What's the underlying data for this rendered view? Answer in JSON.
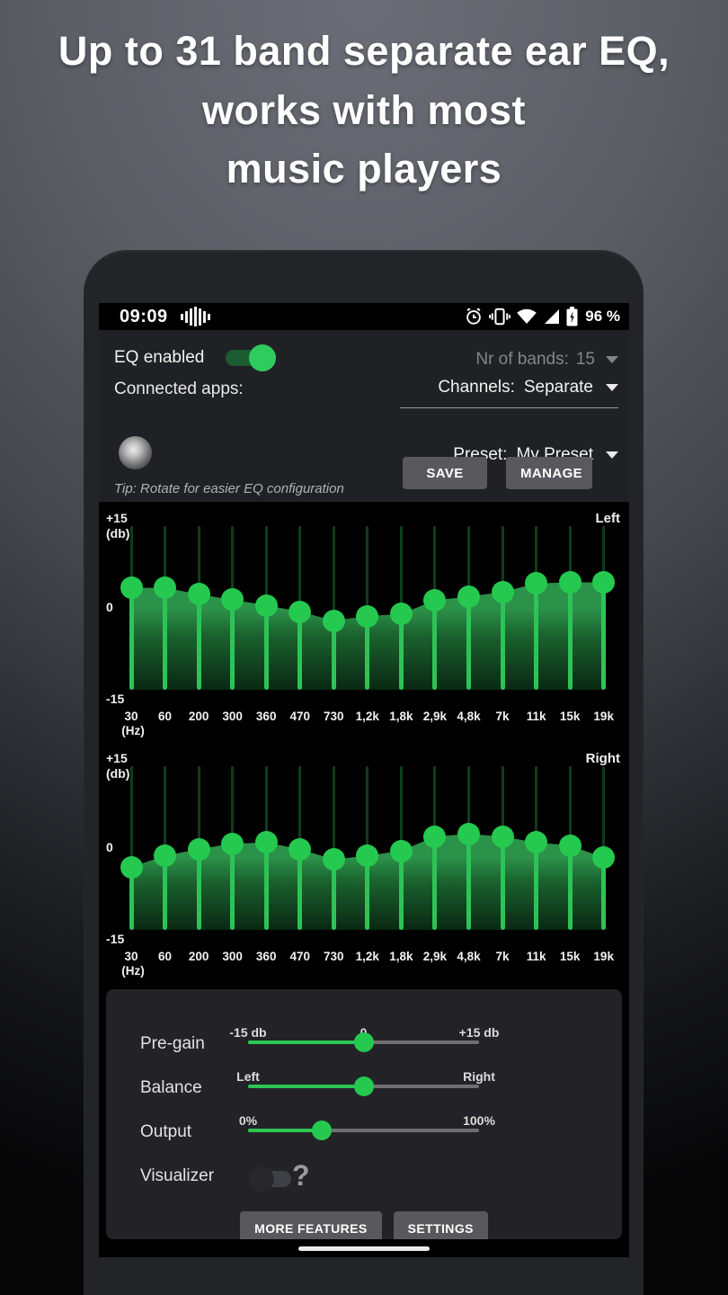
{
  "headline": {
    "lines": [
      "Up to 31 band separate ear EQ,",
      "works with most",
      "music players"
    ]
  },
  "status_bar": {
    "time": "09:09",
    "battery_text": "96 %",
    "icons": [
      "equalizer-notification-icon",
      "alarm-icon",
      "vibrate-icon",
      "wifi-icon",
      "cell-signal-icon",
      "battery-charging-icon"
    ]
  },
  "controls": {
    "eq_enabled_label": "EQ enabled",
    "eq_enabled": true,
    "connected_apps_label": "Connected apps:",
    "nr_of_bands_label": "Nr of bands:",
    "nr_of_bands_value": "15",
    "channels_label": "Channels:",
    "channels_value": "Separate",
    "preset_label": "Preset:",
    "preset_value": "My Preset",
    "save_label": "SAVE",
    "manage_label": "MANAGE",
    "tip": "Tip: Rotate for easier EQ configuration"
  },
  "chart_data": [
    {
      "type": "line",
      "subtype": "equalizer-sliders",
      "channel": "Left",
      "categories": [
        "30",
        "60",
        "200",
        "300",
        "360",
        "470",
        "730",
        "1,2k",
        "1,8k",
        "2,9k",
        "4,8k",
        "7k",
        "11k",
        "15k",
        "19k"
      ],
      "x_unit": "(Hz)",
      "values": [
        3.7,
        3.7,
        2.5,
        1.5,
        0.5,
        -0.7,
        -2.3,
        -1.5,
        -1.1,
        1.4,
        2.1,
        2.9,
        4.5,
        4.7,
        4.7
      ],
      "ylim": [
        -15,
        15
      ],
      "ymax_label": "+15",
      "y_unit": "(db)",
      "zero_label": "0",
      "ymin_label": "-15"
    },
    {
      "type": "line",
      "subtype": "equalizer-sliders",
      "channel": "Right",
      "categories": [
        "30",
        "60",
        "200",
        "300",
        "360",
        "470",
        "730",
        "1,2k",
        "1,8k",
        "2,9k",
        "4,8k",
        "7k",
        "11k",
        "15k",
        "19k"
      ],
      "x_unit": "(Hz)",
      "values": [
        -3.5,
        -1.4,
        -0.2,
        0.8,
        1.0,
        -0.2,
        -2.1,
        -1.4,
        -0.5,
        2.1,
        2.6,
        2.1,
        1.0,
        0.5,
        -1.8
      ],
      "ylim": [
        -15,
        15
      ],
      "ymax_label": "+15",
      "y_unit": "(db)",
      "zero_label": "0",
      "ymin_label": "-15"
    }
  ],
  "mixer": {
    "rows": [
      {
        "id": "pre-gain",
        "label": "Pre-gain",
        "min_label": "-15 db",
        "center_label": "0",
        "max_label": "+15 db",
        "value_pct": 50
      },
      {
        "id": "balance",
        "label": "Balance",
        "min_label": "Left",
        "center_label": "",
        "max_label": "Right",
        "value_pct": 50
      },
      {
        "id": "output",
        "label": "Output",
        "min_label": "0%",
        "center_label": "",
        "max_label": "100%",
        "value_pct": 32
      }
    ],
    "visualizer_label": "Visualizer",
    "visualizer_on": false,
    "help_glyph": "?",
    "more_features_label": "MORE FEATURES",
    "settings_label": "SETTINGS"
  },
  "colors": {
    "accent_green": "#2bc653",
    "knob_green": "#25c94f",
    "dim_track_green": "#0f3d1d",
    "toggle_on_track": "#1b5c31",
    "toggle_on_thumb": "#2ecc5e",
    "panel_bg": "#202124",
    "card_bg": "#232327",
    "button_grey": "#59595d",
    "muted_text": "#85858a"
  }
}
